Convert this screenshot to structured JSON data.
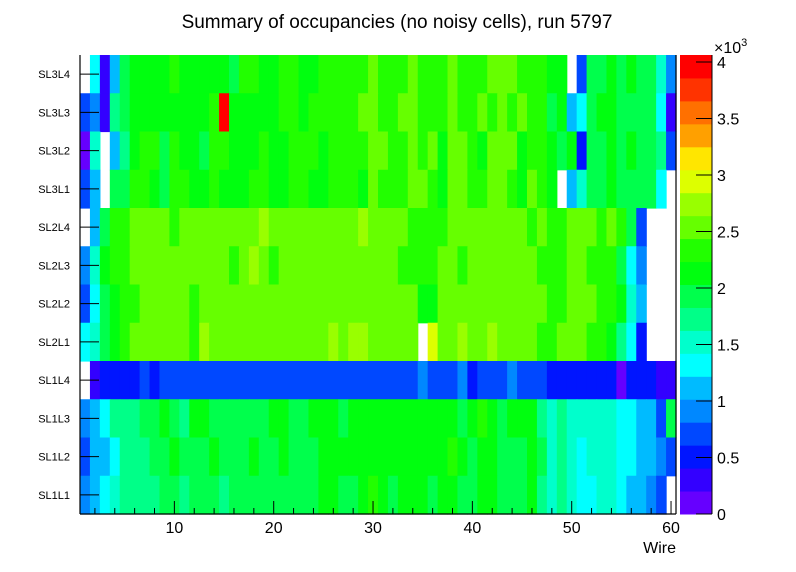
{
  "chart_data": {
    "type": "heatmap",
    "title": "Summary of occupancies (no noisy cells), run 5797",
    "xlabel": "Wire",
    "ylabel": "",
    "xlim": [
      0.5,
      60.5
    ],
    "x_ticks": [
      "10",
      "20",
      "30",
      "40",
      "50",
      "60"
    ],
    "z_unit_label": "×10",
    "z_unit_exponent": "3",
    "zlim": [
      0,
      4.062
    ],
    "z_ticks": [
      "0",
      "0.5",
      "1",
      "1.5",
      "2",
      "2.5",
      "3",
      "3.5",
      "4"
    ],
    "palette": [
      "#6600ff",
      "#3300ff",
      "#0015ff",
      "#0048ff",
      "#0088ff",
      "#00bbff",
      "#00ffff",
      "#00ffcc",
      "#00ff88",
      "#00ff4c",
      "#00ff0f",
      "#22ff00",
      "#66ff00",
      "#99ff00",
      "#ddff00",
      "#ffe600",
      "#ffa000",
      "#ff7000",
      "#ff3300",
      "#ff0000"
    ],
    "rows": [
      {
        "label": "SL3L4",
        "values": [
          0,
          1.3,
          0.3,
          1.1,
          1.9,
          2.1,
          2.1,
          2.1,
          2.1,
          2.3,
          2.1,
          2.1,
          2.1,
          2.1,
          2.1,
          1.9,
          2.3,
          2.3,
          2.1,
          2.1,
          2.3,
          2.3,
          2.1,
          2.1,
          2.3,
          2.3,
          2.3,
          2.3,
          2.3,
          2.5,
          2.3,
          2.3,
          2.3,
          2.5,
          2.3,
          2.3,
          2.3,
          2.5,
          2.3,
          2.3,
          2.3,
          2.5,
          2.5,
          2.5,
          2.3,
          2.3,
          2.3,
          2.1,
          2.1,
          0,
          0.7,
          1.9,
          1.9,
          2.1,
          1.9,
          2.1,
          1.9,
          1.9,
          1.5,
          0.9
        ]
      },
      {
        "label": "SL3L3",
        "values": [
          0.7,
          0.9,
          0.3,
          1.7,
          1.9,
          2.1,
          2.1,
          2.1,
          2.1,
          2.1,
          2.1,
          2.1,
          2.1,
          2.3,
          3.9,
          2.1,
          2.1,
          2.1,
          2.1,
          2.1,
          2.3,
          2.3,
          2.1,
          2.3,
          2.3,
          2.3,
          2.3,
          2.3,
          2.5,
          2.5,
          2.3,
          2.3,
          2.5,
          2.5,
          2.3,
          2.3,
          2.3,
          2.5,
          2.3,
          2.3,
          2.5,
          2.3,
          2.5,
          2.3,
          2.5,
          2.3,
          2.3,
          1.9,
          2.1,
          1.1,
          1.3,
          1.9,
          2.1,
          2.1,
          1.9,
          1.9,
          1.9,
          1.9,
          1.3,
          0.3
        ]
      },
      {
        "label": "SL3L2",
        "values": [
          0.1,
          1.5,
          0,
          1.1,
          1.7,
          2.1,
          2.3,
          2.3,
          1.9,
          2.3,
          2.1,
          2.1,
          1.9,
          2.3,
          2.3,
          2.1,
          2.1,
          2.1,
          2.3,
          2.1,
          2.1,
          2.3,
          2.3,
          2.3,
          2.1,
          2.3,
          2.3,
          2.3,
          2.3,
          2.5,
          2.5,
          2.3,
          2.3,
          2.5,
          2.3,
          2.5,
          2.1,
          2.5,
          2.5,
          2.3,
          2.1,
          2.5,
          2.5,
          2.5,
          2.1,
          2.3,
          2.3,
          2.1,
          1.9,
          2.1,
          0.5,
          1.9,
          1.9,
          2.1,
          1.9,
          2.1,
          1.9,
          1.9,
          1.7,
          0.7
        ]
      },
      {
        "label": "SL3L1",
        "values": [
          0.7,
          1.1,
          0,
          1.9,
          1.9,
          2.3,
          2.3,
          2.1,
          1.9,
          2.3,
          2.3,
          2.1,
          2.1,
          2.3,
          2.1,
          2.1,
          2.1,
          2.3,
          2.3,
          2.1,
          2.1,
          2.3,
          2.3,
          2.1,
          2.1,
          2.3,
          2.3,
          2.3,
          2.1,
          2.5,
          2.3,
          2.3,
          2.3,
          2.5,
          2.5,
          2.3,
          2.1,
          2.5,
          2.5,
          2.3,
          2.3,
          2.5,
          2.5,
          2.3,
          2.1,
          2.5,
          2.3,
          2.1,
          0,
          1.1,
          1.5,
          1.9,
          1.9,
          2.1,
          1.9,
          1.9,
          1.9,
          1.9,
          1.3,
          0
        ]
      },
      {
        "label": "SL2L4",
        "values": [
          0,
          1.1,
          1.9,
          2.3,
          2.3,
          2.5,
          2.5,
          2.5,
          2.5,
          2.3,
          2.5,
          2.5,
          2.5,
          2.5,
          2.5,
          2.5,
          2.5,
          2.5,
          2.7,
          2.5,
          2.5,
          2.5,
          2.5,
          2.5,
          2.5,
          2.5,
          2.5,
          2.5,
          2.7,
          2.5,
          2.5,
          2.5,
          2.5,
          2.3,
          2.3,
          2.3,
          2.3,
          2.5,
          2.5,
          2.5,
          2.5,
          2.5,
          2.5,
          2.5,
          2.5,
          2.3,
          2.5,
          2.3,
          2.3,
          2.5,
          2.5,
          2.5,
          2.3,
          2.5,
          2.3,
          1.9,
          0.7,
          0,
          0,
          0
        ]
      },
      {
        "label": "SL2L3",
        "values": [
          0.9,
          1.5,
          2.1,
          2.3,
          2.3,
          2.5,
          2.5,
          2.5,
          2.5,
          2.5,
          2.5,
          2.5,
          2.5,
          2.5,
          2.5,
          2.3,
          2.5,
          2.7,
          2.5,
          2.3,
          2.5,
          2.5,
          2.5,
          2.5,
          2.5,
          2.5,
          2.5,
          2.5,
          2.5,
          2.5,
          2.5,
          2.5,
          2.3,
          2.3,
          2.3,
          2.3,
          2.5,
          2.5,
          2.3,
          2.5,
          2.5,
          2.5,
          2.5,
          2.5,
          2.5,
          2.5,
          2.3,
          2.3,
          2.3,
          2.5,
          2.5,
          2.3,
          2.3,
          2.3,
          1.9,
          1.3,
          0.9,
          0,
          0,
          0
        ]
      },
      {
        "label": "SL2L2",
        "values": [
          0.7,
          1.3,
          1.9,
          2.1,
          2.3,
          2.3,
          2.5,
          2.5,
          2.5,
          2.5,
          2.5,
          2.3,
          2.5,
          2.5,
          2.5,
          2.5,
          2.5,
          2.5,
          2.5,
          2.5,
          2.5,
          2.5,
          2.5,
          2.5,
          2.5,
          2.5,
          2.5,
          2.5,
          2.5,
          2.5,
          2.5,
          2.5,
          2.5,
          2.5,
          2.1,
          2.1,
          2.5,
          2.5,
          2.5,
          2.5,
          2.5,
          2.5,
          2.5,
          2.5,
          2.5,
          2.5,
          2.5,
          2.3,
          2.3,
          2.5,
          2.5,
          2.5,
          2.3,
          2.3,
          2.1,
          1.5,
          1.1,
          0,
          0,
          0
        ]
      },
      {
        "label": "SL2L1",
        "values": [
          1.3,
          1.5,
          1.9,
          2.1,
          2.3,
          2.5,
          2.5,
          2.5,
          2.5,
          2.5,
          2.5,
          2.3,
          2.7,
          2.5,
          2.5,
          2.5,
          2.5,
          2.5,
          2.5,
          2.5,
          2.5,
          2.5,
          2.5,
          2.5,
          2.5,
          2.7,
          2.5,
          2.7,
          2.7,
          2.5,
          2.5,
          2.5,
          2.5,
          2.5,
          0,
          2.9,
          2.5,
          2.5,
          2.7,
          2.5,
          2.5,
          2.7,
          2.5,
          2.5,
          2.5,
          2.5,
          2.3,
          2.3,
          2.5,
          2.5,
          2.5,
          2.3,
          2.3,
          2.1,
          1.7,
          1.3,
          0.5,
          0,
          0,
          0
        ]
      },
      {
        "label": "SL1L4",
        "values": [
          0,
          0.3,
          0.5,
          0.5,
          0.5,
          0.5,
          0.7,
          0.5,
          0.7,
          0.7,
          0.7,
          0.7,
          0.7,
          0.7,
          0.7,
          0.7,
          0.7,
          0.7,
          0.7,
          0.7,
          0.7,
          0.7,
          0.7,
          0.7,
          0.7,
          0.7,
          0.7,
          0.7,
          0.7,
          0.7,
          0.7,
          0.7,
          0.7,
          0.7,
          0.9,
          0.7,
          0.7,
          0.7,
          0.9,
          0.5,
          0.7,
          0.7,
          0.7,
          0.9,
          0.7,
          0.7,
          0.7,
          0.5,
          0.5,
          0.5,
          0.5,
          0.5,
          0.5,
          0.5,
          0.1,
          0.5,
          0.5,
          0.5,
          0.3,
          0.3
        ]
      },
      {
        "label": "SL1L3",
        "values": [
          0.9,
          1.1,
          1.3,
          1.7,
          1.7,
          1.7,
          1.9,
          1.9,
          2.1,
          1.9,
          1.7,
          2.1,
          2.1,
          1.9,
          1.9,
          1.9,
          1.9,
          1.9,
          1.9,
          2.1,
          2.1,
          1.9,
          1.9,
          2.1,
          2.1,
          2.1,
          1.9,
          2.1,
          2.1,
          2.1,
          2.1,
          2.1,
          2.1,
          2.1,
          2.1,
          2.1,
          2.1,
          2.1,
          1.9,
          2.1,
          2.3,
          2.1,
          1.9,
          2.1,
          2.1,
          2.1,
          1.7,
          1.5,
          1.7,
          1.5,
          1.5,
          1.5,
          1.5,
          1.5,
          1.3,
          1.3,
          1.1,
          1.1,
          0.7,
          1.9
        ]
      },
      {
        "label": "SL1L2",
        "values": [
          0.7,
          1.1,
          1.1,
          1.3,
          1.7,
          1.7,
          1.7,
          1.9,
          1.9,
          2.1,
          1.9,
          1.9,
          1.9,
          2.1,
          1.9,
          1.9,
          1.9,
          2.1,
          1.9,
          1.9,
          2.1,
          1.9,
          1.9,
          1.9,
          2.1,
          2.1,
          2.1,
          2.1,
          2.1,
          2.1,
          2.1,
          2.1,
          2.1,
          2.1,
          2.1,
          2.1,
          2.1,
          2.3,
          2.1,
          1.9,
          2.1,
          2.1,
          1.9,
          1.9,
          1.9,
          2.1,
          1.9,
          1.5,
          1.7,
          1.5,
          1.3,
          1.5,
          1.5,
          1.5,
          1.3,
          1.3,
          1.1,
          1.1,
          0.9,
          0.7
        ]
      },
      {
        "label": "SL1L1",
        "values": [
          0.9,
          1.1,
          1.3,
          1.5,
          1.7,
          1.7,
          1.7,
          1.7,
          1.9,
          1.9,
          1.7,
          1.9,
          1.9,
          1.9,
          1.7,
          1.9,
          1.9,
          1.9,
          1.9,
          1.9,
          1.9,
          1.9,
          1.9,
          1.9,
          2.1,
          2.1,
          1.9,
          1.9,
          2.1,
          2.3,
          2.1,
          1.9,
          2.1,
          2.1,
          2.1,
          1.9,
          2.1,
          2.1,
          1.9,
          1.9,
          2.1,
          2.1,
          1.9,
          1.9,
          1.9,
          2.1,
          1.7,
          1.5,
          1.7,
          1.5,
          1.3,
          1.3,
          1.5,
          1.5,
          1.3,
          1.1,
          1.1,
          0.9,
          0.7,
          0
        ]
      }
    ]
  }
}
